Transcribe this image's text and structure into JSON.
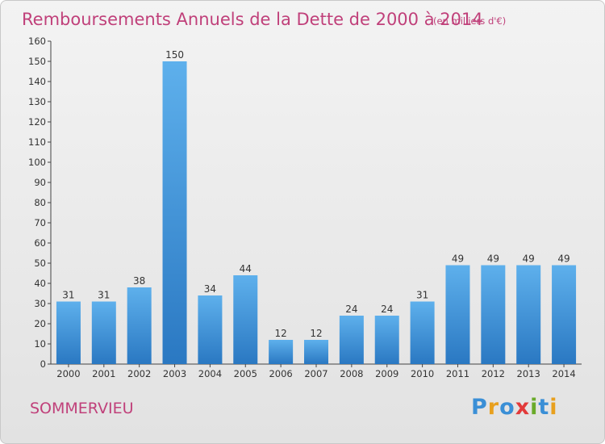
{
  "chart_data": {
    "type": "bar",
    "title": "Remboursements Annuels de la Dette de 2000 à 2014",
    "subtitle": "(en milliers d'€)",
    "categories": [
      "2000",
      "2001",
      "2002",
      "2003",
      "2004",
      "2005",
      "2006",
      "2007",
      "2008",
      "2009",
      "2010",
      "2011",
      "2012",
      "2013",
      "2014"
    ],
    "values": [
      31,
      31,
      38,
      150,
      34,
      44,
      12,
      12,
      24,
      24,
      31,
      49,
      49,
      49,
      49
    ],
    "ylim": [
      0,
      160
    ],
    "ytick_step": 10,
    "grid": false,
    "bar_color": "#3a8fd6",
    "xlabel": "",
    "ylabel": ""
  },
  "commune": "SOMMERVIEU",
  "logo": {
    "letters": [
      "P",
      "r",
      "o",
      "x",
      "i",
      "t",
      "i"
    ],
    "colors": [
      "#3a8fd6",
      "#e8a01e",
      "#3a8fd6",
      "#e23a3a",
      "#6aaa2a",
      "#3a8fd6",
      "#e8a01e"
    ]
  }
}
